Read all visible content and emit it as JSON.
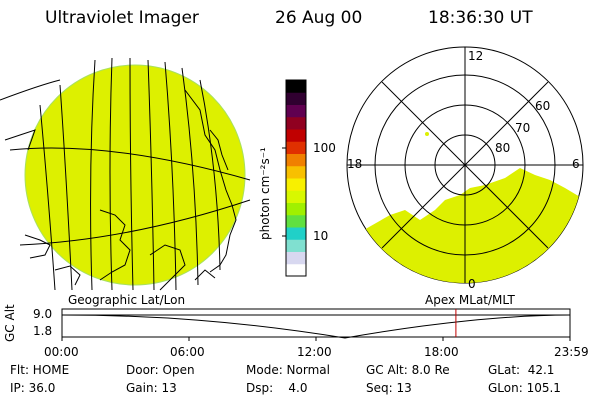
{
  "header": {
    "title": "Ultraviolet Imager",
    "date": "26 Aug 00",
    "time": "18:36:30 UT"
  },
  "colorbar": {
    "unit_label": "photon cm⁻²s⁻¹",
    "tick_100": "100",
    "tick_10": "10",
    "colors": [
      "#ffffff",
      "#d8d8f0",
      "#80e0d0",
      "#20d0c8",
      "#60e040",
      "#a0f000",
      "#d8f800",
      "#f8f000",
      "#f8c000",
      "#f08000",
      "#e03000",
      "#c00000",
      "#900020",
      "#600050",
      "#300030",
      "#000000"
    ]
  },
  "geo_panel": {
    "caption": "Geographic Lat/Lon",
    "fill_color": "#ddf000"
  },
  "polar_panel": {
    "caption": "Apex MLat/MLT",
    "mlt_12": "12",
    "mlt_18": "18",
    "mlt_6": "6",
    "mlt_0": "0",
    "lat_60": "60",
    "lat_70": "70",
    "lat_80": "80"
  },
  "altitude_plot": {
    "axis_label": "GC Alt",
    "y_top": "9.0",
    "y_bottom": "1.8",
    "x_ticks": [
      "00:00",
      "06:00",
      "12:00",
      "18:00",
      "23:59"
    ],
    "current_time_marker_hours": 18.608
  },
  "status": {
    "flt": "Flt: HOME",
    "ip": "IP: 36.0",
    "door": "Door: Open",
    "gain": "Gain: 13",
    "mode": "Mode: Normal",
    "dsp": "Dsp:    4.0",
    "gc_alt": "GC Alt: 8.0 Re",
    "seq": "Seq: 13",
    "glat": "GLat:  42.1",
    "glon": "GLon: 105.1"
  }
}
